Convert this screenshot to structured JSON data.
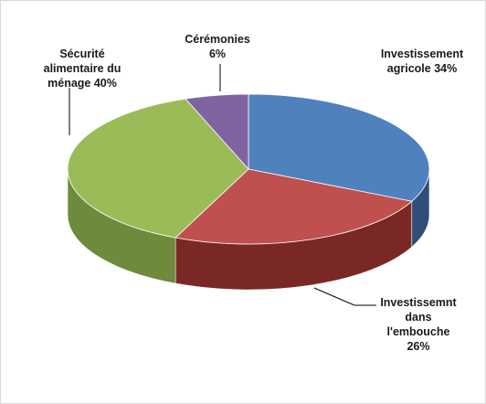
{
  "chart_data": {
    "type": "pie",
    "title": "",
    "slices": [
      {
        "label": "Investissement agricole",
        "value": 34,
        "color": "#4f81bd",
        "side_color": "#2f4f78"
      },
      {
        "label": "Investissemnt dans l'embouche",
        "value": 26,
        "color": "#c0504d",
        "side_color": "#7a2826"
      },
      {
        "label": "Sécurité alimentaire du ménage",
        "value": 40,
        "color": "#9bbb59",
        "side_color": "#6e8a3c"
      },
      {
        "label": "Cérémonies",
        "value": 6,
        "color": "#8064a2",
        "side_color": "#553f70"
      }
    ],
    "data_labels": [
      {
        "lines": [
          "Investissement",
          "agricole 34%"
        ]
      },
      {
        "lines": [
          "Investissemnt",
          "dans",
          "l'embouche",
          "26%"
        ]
      },
      {
        "lines": [
          "Sécurité",
          "alimentaire du",
          "ménage 40%"
        ]
      },
      {
        "lines": [
          "Cérémonies",
          "6%"
        ]
      }
    ],
    "legend": "none",
    "style": "3d-pie"
  }
}
